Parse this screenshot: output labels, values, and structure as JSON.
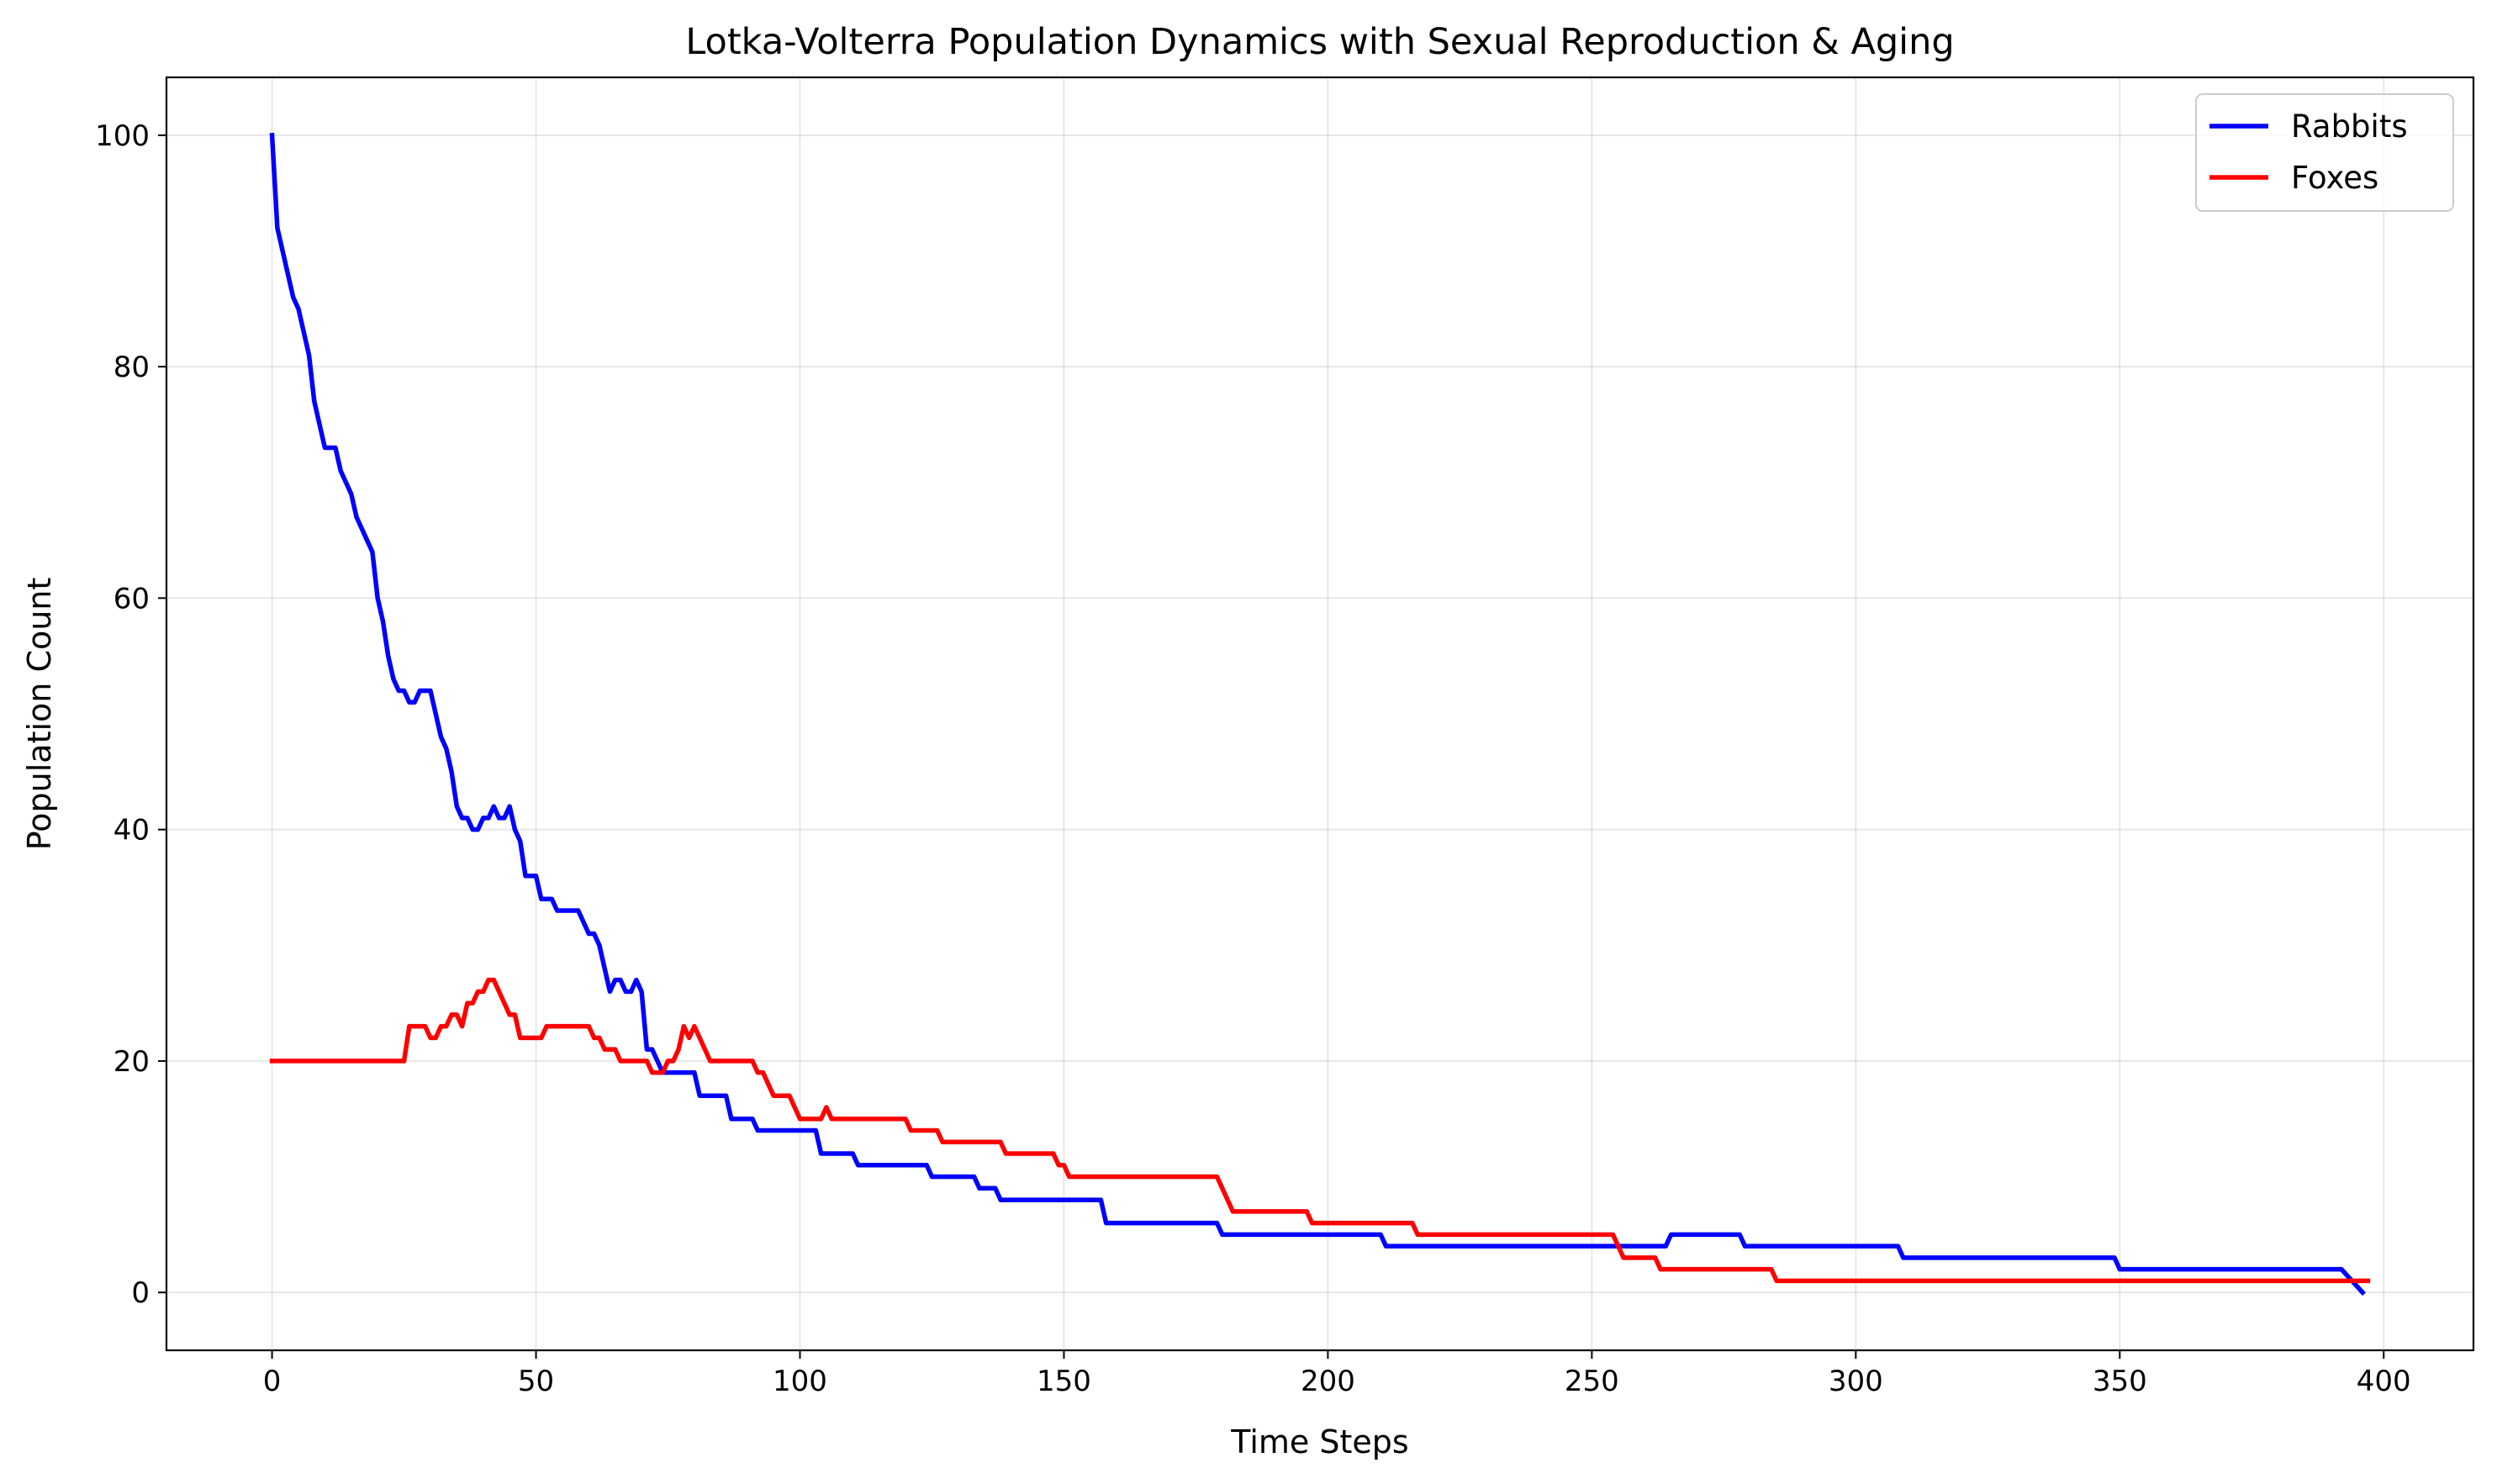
{
  "chart_data": {
    "type": "line",
    "title": "Lotka-Volterra Population Dynamics with Sexual Reproduction & Aging",
    "xlabel": "Time Steps",
    "ylabel": "Population Count",
    "xlim": [
      -20,
      417
    ],
    "ylim": [
      -5,
      105
    ],
    "xticks": [
      0,
      50,
      100,
      150,
      200,
      250,
      300,
      350,
      400
    ],
    "xtick_labels": [
      "0",
      "50",
      "100",
      "150",
      "200",
      "250",
      "300",
      "350",
      "400"
    ],
    "yticks": [
      0,
      20,
      40,
      60,
      80,
      100
    ],
    "ytick_labels": [
      "0",
      "20",
      "40",
      "60",
      "80",
      "100"
    ],
    "grid": true,
    "legend_position": "top-right",
    "series": [
      {
        "name": "Rabbits",
        "color": "#0000ff",
        "points": [
          [
            0,
            100
          ],
          [
            1,
            92
          ],
          [
            2,
            90
          ],
          [
            3,
            88
          ],
          [
            4,
            86
          ],
          [
            5,
            85
          ],
          [
            6,
            83
          ],
          [
            7,
            81
          ],
          [
            8,
            77
          ],
          [
            9,
            75
          ],
          [
            10,
            73
          ],
          [
            12,
            73
          ],
          [
            13,
            71
          ],
          [
            14,
            70
          ],
          [
            15,
            69
          ],
          [
            16,
            67
          ],
          [
            17,
            66
          ],
          [
            18,
            65
          ],
          [
            19,
            64
          ],
          [
            20,
            60
          ],
          [
            21,
            58
          ],
          [
            22,
            55
          ],
          [
            23,
            53
          ],
          [
            24,
            52
          ],
          [
            25,
            52
          ],
          [
            26,
            51
          ],
          [
            27,
            51
          ],
          [
            28,
            52
          ],
          [
            30,
            52
          ],
          [
            31,
            50
          ],
          [
            32,
            48
          ],
          [
            33,
            47
          ],
          [
            34,
            45
          ],
          [
            35,
            42
          ],
          [
            36,
            41
          ],
          [
            37,
            41
          ],
          [
            38,
            40
          ],
          [
            39,
            40
          ],
          [
            40,
            41
          ],
          [
            41,
            41
          ],
          [
            42,
            42
          ],
          [
            43,
            41
          ],
          [
            44,
            41
          ],
          [
            45,
            42
          ],
          [
            46,
            40
          ],
          [
            47,
            39
          ],
          [
            48,
            36
          ],
          [
            50,
            36
          ],
          [
            51,
            34
          ],
          [
            53,
            34
          ],
          [
            54,
            33
          ],
          [
            58,
            33
          ],
          [
            59,
            32
          ],
          [
            60,
            31
          ],
          [
            61,
            31
          ],
          [
            62,
            30
          ],
          [
            63,
            28
          ],
          [
            64,
            26
          ],
          [
            65,
            27
          ],
          [
            66,
            27
          ],
          [
            67,
            26
          ],
          [
            68,
            26
          ],
          [
            69,
            27
          ],
          [
            70,
            26
          ],
          [
            71,
            21
          ],
          [
            72,
            21
          ],
          [
            73,
            20
          ],
          [
            74,
            19
          ],
          [
            80,
            19
          ],
          [
            81,
            17
          ],
          [
            86,
            17
          ],
          [
            87,
            15
          ],
          [
            91,
            15
          ],
          [
            92,
            14
          ],
          [
            103,
            14
          ],
          [
            104,
            12
          ],
          [
            110,
            12
          ],
          [
            111,
            11
          ],
          [
            124,
            11
          ],
          [
            125,
            10
          ],
          [
            133,
            10
          ],
          [
            134,
            9
          ],
          [
            137,
            9
          ],
          [
            138,
            8
          ],
          [
            157,
            8
          ],
          [
            158,
            6
          ],
          [
            179,
            6
          ],
          [
            180,
            5
          ],
          [
            210,
            5
          ],
          [
            211,
            4
          ],
          [
            264,
            4
          ],
          [
            265,
            5
          ],
          [
            278,
            5
          ],
          [
            279,
            4
          ],
          [
            308,
            4
          ],
          [
            309,
            3
          ],
          [
            349,
            3
          ],
          [
            350,
            2
          ],
          [
            392,
            2
          ],
          [
            394,
            1
          ],
          [
            396,
            0
          ]
        ]
      },
      {
        "name": "Foxes",
        "color": "#ff0000",
        "points": [
          [
            0,
            20
          ],
          [
            25,
            20
          ],
          [
            26,
            23
          ],
          [
            29,
            23
          ],
          [
            30,
            22
          ],
          [
            31,
            22
          ],
          [
            32,
            23
          ],
          [
            33,
            23
          ],
          [
            34,
            24
          ],
          [
            35,
            24
          ],
          [
            36,
            23
          ],
          [
            37,
            25
          ],
          [
            38,
            25
          ],
          [
            39,
            26
          ],
          [
            40,
            26
          ],
          [
            41,
            27
          ],
          [
            42,
            27
          ],
          [
            43,
            26
          ],
          [
            44,
            25
          ],
          [
            45,
            24
          ],
          [
            46,
            24
          ],
          [
            47,
            22
          ],
          [
            51,
            22
          ],
          [
            52,
            23
          ],
          [
            60,
            23
          ],
          [
            61,
            22
          ],
          [
            62,
            22
          ],
          [
            63,
            21
          ],
          [
            65,
            21
          ],
          [
            66,
            20
          ],
          [
            71,
            20
          ],
          [
            72,
            19
          ],
          [
            74,
            19
          ],
          [
            75,
            20
          ],
          [
            76,
            20
          ],
          [
            77,
            21
          ],
          [
            78,
            23
          ],
          [
            79,
            22
          ],
          [
            80,
            23
          ],
          [
            81,
            22
          ],
          [
            82,
            21
          ],
          [
            83,
            20
          ],
          [
            91,
            20
          ],
          [
            92,
            19
          ],
          [
            93,
            19
          ],
          [
            94,
            18
          ],
          [
            95,
            17
          ],
          [
            98,
            17
          ],
          [
            99,
            16
          ],
          [
            100,
            15
          ],
          [
            104,
            15
          ],
          [
            105,
            16
          ],
          [
            106,
            15
          ],
          [
            120,
            15
          ],
          [
            121,
            14
          ],
          [
            126,
            14
          ],
          [
            127,
            13
          ],
          [
            138,
            13
          ],
          [
            139,
            12
          ],
          [
            148,
            12
          ],
          [
            149,
            11
          ],
          [
            150,
            11
          ],
          [
            151,
            10
          ],
          [
            179,
            10
          ],
          [
            180,
            9
          ],
          [
            182,
            7
          ],
          [
            196,
            7
          ],
          [
            197,
            6
          ],
          [
            216,
            6
          ],
          [
            217,
            5
          ],
          [
            254,
            5
          ],
          [
            255,
            4
          ],
          [
            256,
            3
          ],
          [
            262,
            3
          ],
          [
            263,
            2
          ],
          [
            284,
            2
          ],
          [
            285,
            1
          ],
          [
            397,
            1
          ]
        ]
      }
    ]
  }
}
